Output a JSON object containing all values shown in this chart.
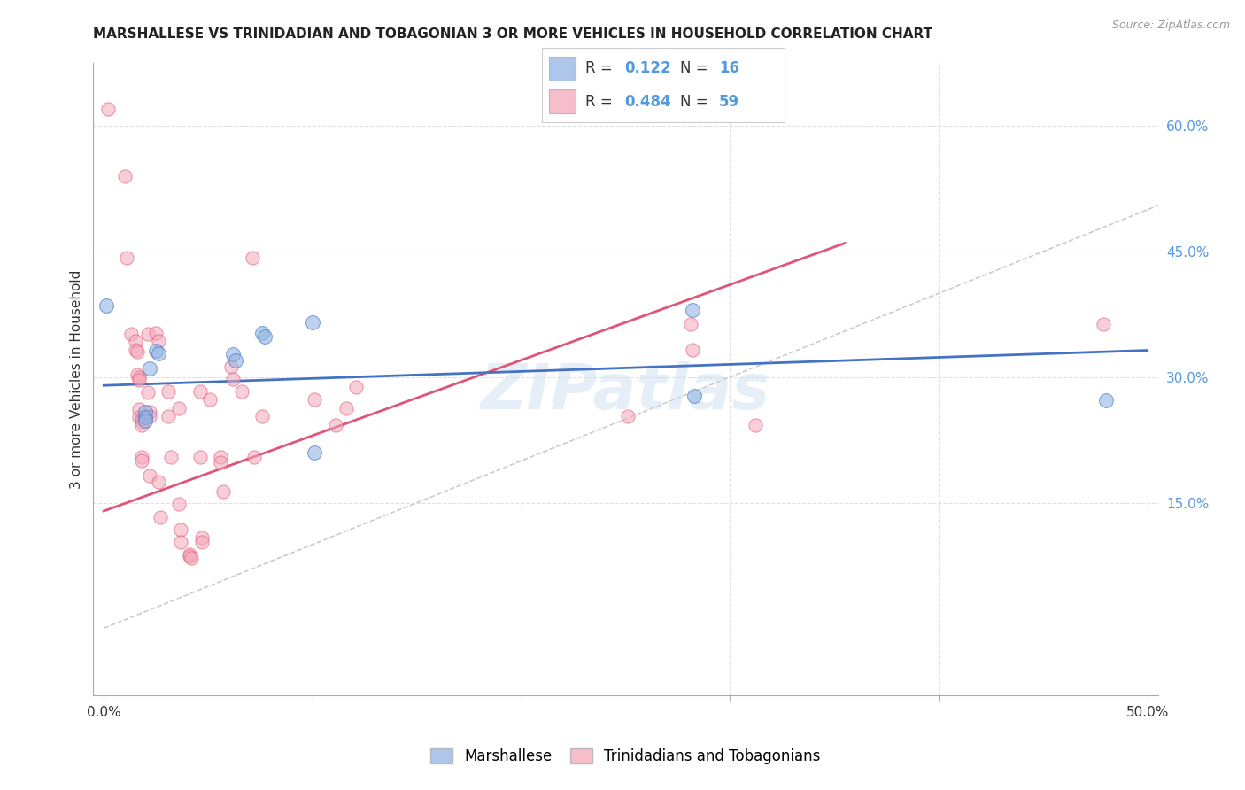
{
  "title": "MARSHALLESE VS TRINIDADIAN AND TOBAGONIAN 3 OR MORE VEHICLES IN HOUSEHOLD CORRELATION CHART",
  "source": "Source: ZipAtlas.com",
  "ylabel": "3 or more Vehicles in Household",
  "xlim": [
    -0.005,
    0.505
  ],
  "ylim": [
    -0.08,
    0.675
  ],
  "x_ticks": [
    0.0,
    0.1,
    0.2,
    0.3,
    0.4,
    0.5
  ],
  "x_tick_labels": [
    "0.0%",
    "",
    "",
    "",
    "",
    "50.0%"
  ],
  "y_ticks_right": [
    0.15,
    0.3,
    0.45,
    0.6
  ],
  "y_tick_labels_right": [
    "15.0%",
    "30.0%",
    "45.0%",
    "60.0%"
  ],
  "R_blue": "0.122",
  "N_blue": "16",
  "R_pink": "0.484",
  "N_pink": "59",
  "blue_points": [
    [
      0.001,
      0.385
    ],
    [
      0.022,
      0.31
    ],
    [
      0.02,
      0.258
    ],
    [
      0.02,
      0.252
    ],
    [
      0.02,
      0.248
    ],
    [
      0.025,
      0.332
    ],
    [
      0.026,
      0.328
    ],
    [
      0.062,
      0.327
    ],
    [
      0.063,
      0.32
    ],
    [
      0.076,
      0.353
    ],
    [
      0.077,
      0.348
    ],
    [
      0.1,
      0.365
    ],
    [
      0.101,
      0.21
    ],
    [
      0.282,
      0.38
    ],
    [
      0.283,
      0.278
    ],
    [
      0.48,
      0.272
    ]
  ],
  "pink_points": [
    [
      0.002,
      0.62
    ],
    [
      0.01,
      0.54
    ],
    [
      0.011,
      0.443
    ],
    [
      0.013,
      0.352
    ],
    [
      0.015,
      0.343
    ],
    [
      0.015,
      0.333
    ],
    [
      0.016,
      0.33
    ],
    [
      0.016,
      0.303
    ],
    [
      0.017,
      0.3
    ],
    [
      0.017,
      0.297
    ],
    [
      0.017,
      0.262
    ],
    [
      0.017,
      0.252
    ],
    [
      0.018,
      0.25
    ],
    [
      0.018,
      0.247
    ],
    [
      0.018,
      0.243
    ],
    [
      0.018,
      0.205
    ],
    [
      0.018,
      0.2
    ],
    [
      0.021,
      0.352
    ],
    [
      0.021,
      0.282
    ],
    [
      0.022,
      0.258
    ],
    [
      0.022,
      0.253
    ],
    [
      0.022,
      0.182
    ],
    [
      0.025,
      0.353
    ],
    [
      0.026,
      0.343
    ],
    [
      0.026,
      0.175
    ],
    [
      0.027,
      0.133
    ],
    [
      0.031,
      0.283
    ],
    [
      0.031,
      0.253
    ],
    [
      0.032,
      0.205
    ],
    [
      0.036,
      0.263
    ],
    [
      0.036,
      0.148
    ],
    [
      0.037,
      0.118
    ],
    [
      0.037,
      0.103
    ],
    [
      0.041,
      0.088
    ],
    [
      0.041,
      0.086
    ],
    [
      0.042,
      0.084
    ],
    [
      0.046,
      0.283
    ],
    [
      0.046,
      0.205
    ],
    [
      0.047,
      0.108
    ],
    [
      0.047,
      0.103
    ],
    [
      0.051,
      0.273
    ],
    [
      0.056,
      0.205
    ],
    [
      0.056,
      0.198
    ],
    [
      0.057,
      0.163
    ],
    [
      0.061,
      0.313
    ],
    [
      0.062,
      0.298
    ],
    [
      0.066,
      0.283
    ],
    [
      0.071,
      0.443
    ],
    [
      0.072,
      0.205
    ],
    [
      0.076,
      0.253
    ],
    [
      0.101,
      0.273
    ],
    [
      0.111,
      0.243
    ],
    [
      0.116,
      0.263
    ],
    [
      0.121,
      0.288
    ],
    [
      0.251,
      0.253
    ],
    [
      0.281,
      0.363
    ],
    [
      0.282,
      0.333
    ],
    [
      0.312,
      0.243
    ],
    [
      0.479,
      0.363
    ]
  ],
  "blue_line_pts": [
    0.0,
    0.29,
    0.5,
    0.332
  ],
  "pink_line_pts": [
    0.0,
    0.14,
    0.355,
    0.46
  ],
  "diagonal_line_pts": [
    0.0,
    0.0,
    0.66,
    0.66
  ],
  "watermark": "ZIPatlas",
  "background_color": "#ffffff",
  "grid_color": "#e0e0e0",
  "blue_dot_color": "#92b4e3",
  "pink_dot_color": "#f4a7b9",
  "blue_line_color": "#4472c4",
  "pink_line_color": "#e05577",
  "diagonal_color": "#c8c8c8",
  "right_axis_color": "#5599dd",
  "legend_blue_color": "#92b4e3",
  "legend_pink_color": "#f4a7b9"
}
